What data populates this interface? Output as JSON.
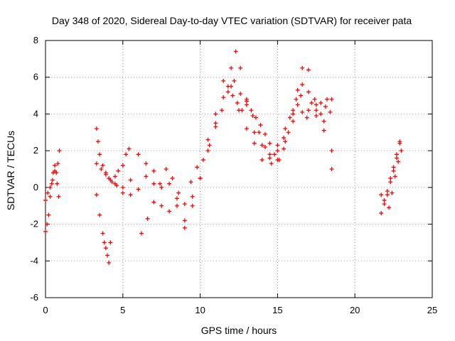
{
  "chart_data": {
    "type": "scatter",
    "title": "Day 348 of 2020, Sidereal Day-to-day VTEC variation (SDTVAR) for receiver pata",
    "xlabel": "GPS time / hours",
    "ylabel": "SDTVAR / TECUs",
    "xlim": [
      0,
      25
    ],
    "ylim": [
      -6,
      8
    ],
    "xticks": [
      0,
      5,
      10,
      15,
      20,
      25
    ],
    "yticks": [
      -6,
      -4,
      -2,
      0,
      2,
      4,
      6,
      8
    ],
    "grid": true,
    "marker": "+",
    "color": "#ff0000",
    "series": [
      {
        "name": "s1",
        "x": [
          0.0,
          0.1,
          0.2,
          0.3,
          0.4,
          0.5,
          0.6,
          0.7,
          0.8,
          0.9
        ],
        "y": [
          -2.4,
          -2.0,
          -1.5,
          -0.5,
          0.2,
          0.8,
          1.2,
          0.8,
          1.3,
          2.0
        ]
      },
      {
        "name": "s2",
        "x": [
          0.0,
          0.15,
          0.3,
          0.45,
          0.6,
          0.75,
          0.85
        ],
        "y": [
          -0.7,
          -0.3,
          0.0,
          0.4,
          0.9,
          0.2,
          -0.5
        ]
      },
      {
        "name": "s3",
        "x": [
          3.3,
          3.4,
          3.5,
          3.7,
          3.9,
          4.1,
          4.3,
          4.5,
          4.7,
          5.0,
          5.2,
          5.4
        ],
        "y": [
          3.2,
          2.5,
          1.8,
          1.2,
          0.8,
          0.5,
          0.3,
          0.6,
          0.9,
          1.2,
          1.8,
          2.1
        ]
      },
      {
        "name": "s4",
        "x": [
          3.3,
          3.5,
          3.7,
          3.8,
          3.9,
          4.0,
          4.1,
          4.2
        ],
        "y": [
          -0.4,
          -1.5,
          -2.5,
          -3.0,
          -3.3,
          -3.7,
          -4.1,
          -3.0
        ]
      },
      {
        "name": "s5",
        "x": [
          3.3,
          3.6,
          3.9,
          4.2,
          4.6,
          5.0,
          5.5,
          6.0,
          6.5,
          7.0,
          7.5,
          8.0,
          8.5,
          9.0,
          9.5,
          10.0,
          10.5,
          11.0,
          11.5,
          12.0,
          12.3,
          12.6,
          13.0,
          13.5,
          14.0,
          14.5,
          15.0,
          15.5,
          16.0,
          16.3,
          16.6,
          17.0,
          17.5,
          18.0,
          18.5
        ],
        "y": [
          1.3,
          1.0,
          0.7,
          0.4,
          0.1,
          0.0,
          -0.4,
          1.8,
          1.3,
          0.2,
          -1.0,
          -1.3,
          -0.6,
          -2.2,
          -1.0,
          0.5,
          2.6,
          4.0,
          5.8,
          6.5,
          7.4,
          6.5,
          4.8,
          3.0,
          2.3,
          1.6,
          2.3,
          3.2,
          4.2,
          5.3,
          6.5,
          6.4,
          4.5,
          3.1,
          1.0
        ]
      },
      {
        "name": "s6",
        "x": [
          4.5,
          5.0,
          5.5,
          6.0,
          6.5,
          7.0,
          7.5,
          8.0,
          8.5,
          9.0,
          9.5,
          10.0,
          10.5,
          11.0,
          11.5,
          12.0,
          12.5,
          13.0,
          13.5,
          14.0,
          14.5,
          15.0,
          15.5,
          16.0,
          16.5,
          17.0,
          17.5,
          18.0,
          18.5
        ],
        "y": [
          0.2,
          -0.3,
          0.4,
          -0.1,
          0.6,
          0.9,
          0.0,
          0.2,
          -1.0,
          -1.8,
          -0.5,
          0.5,
          2.0,
          3.5,
          4.9,
          5.5,
          4.2,
          3.2,
          2.4,
          1.5,
          1.8,
          2.0,
          2.5,
          4.0,
          5.0,
          4.2,
          3.9,
          3.6,
          2.0
        ]
      },
      {
        "name": "s7",
        "x": [
          6.2,
          6.6,
          7.0,
          7.4,
          7.8,
          8.2,
          8.6,
          9.0,
          9.4,
          9.8,
          10.2,
          10.6,
          11.0,
          11.4,
          11.8,
          12.2,
          12.6,
          13.0,
          13.4,
          13.8,
          14.2,
          14.6,
          15.0,
          15.4,
          15.8,
          16.2,
          16.6,
          17.0,
          17.4,
          17.8,
          18.2,
          18.5
        ],
        "y": [
          -2.5,
          -1.7,
          -0.8,
          0.2,
          1.0,
          0.5,
          -0.3,
          -0.9,
          0.3,
          1.1,
          1.5,
          2.3,
          3.3,
          4.2,
          5.2,
          5.8,
          5.1,
          4.5,
          3.9,
          3.0,
          2.2,
          1.3,
          1.5,
          2.7,
          3.8,
          4.8,
          5.6,
          5.2,
          4.8,
          4.6,
          4.8,
          4.8
        ]
      },
      {
        "name": "s8",
        "x": [
          11.8,
          12.1,
          12.4,
          12.7,
          13.0,
          13.3,
          13.6,
          13.9,
          14.2,
          14.5,
          14.8,
          15.1,
          15.4,
          15.7,
          16.0,
          16.3,
          16.6,
          16.9,
          17.2,
          17.5,
          17.8,
          18.1,
          18.4
        ],
        "y": [
          5.5,
          5.0,
          4.6,
          4.2,
          4.7,
          4.2,
          3.8,
          3.4,
          2.9,
          2.4,
          1.8,
          1.5,
          2.1,
          3.0,
          3.6,
          4.5,
          4.1,
          3.8,
          4.6,
          4.2,
          4.0,
          4.4,
          4.1
        ]
      },
      {
        "name": "s9",
        "x": [
          21.7,
          21.9,
          22.1,
          22.3,
          22.5,
          22.7,
          22.9
        ],
        "y": [
          -1.4,
          -0.9,
          -0.4,
          0.3,
          0.9,
          1.6,
          2.4
        ]
      },
      {
        "name": "s10",
        "x": [
          21.7,
          21.9,
          22.1,
          22.3,
          22.5,
          22.7,
          22.9
        ],
        "y": [
          -0.4,
          -0.7,
          -0.2,
          0.5,
          1.1,
          1.8,
          2.5
        ]
      },
      {
        "name": "s11",
        "x": [
          22.2,
          22.4,
          22.6,
          22.8,
          23.0
        ],
        "y": [
          -1.1,
          -0.3,
          0.6,
          1.4,
          2.0
        ]
      }
    ]
  }
}
